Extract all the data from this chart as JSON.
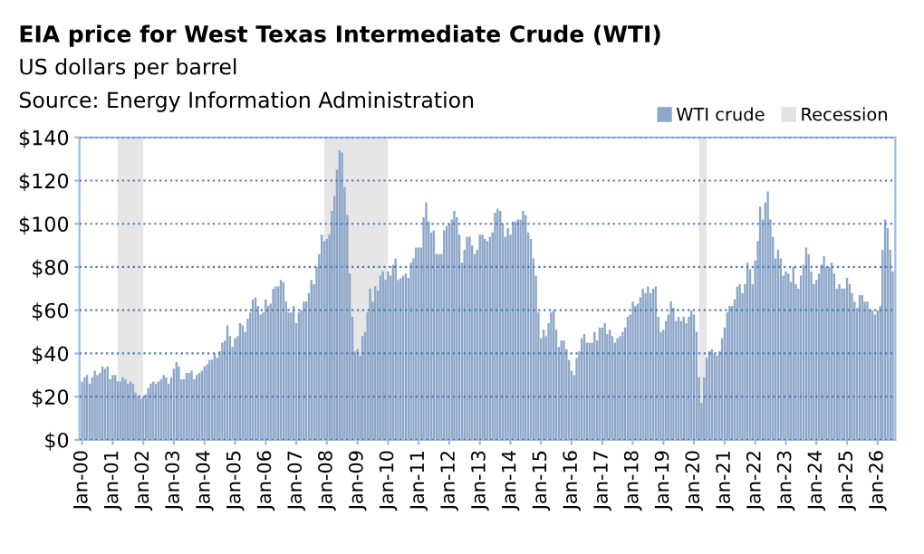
{
  "chart_data": {
    "type": "bar",
    "title": "EIA price for West Texas Intermediate Crude (WTI)",
    "subtitle": "US dollars per barrel",
    "annotations": [
      "Source: Energy Information Administration"
    ],
    "x": [
      "2000-01",
      "2000-02",
      "2000-03",
      "2000-04",
      "2000-05",
      "2000-06",
      "2000-07",
      "2000-08",
      "2000-09",
      "2000-10",
      "2000-11",
      "2000-12",
      "2001-01",
      "2001-02",
      "2001-03",
      "2001-04",
      "2001-05",
      "2001-06",
      "2001-07",
      "2001-08",
      "2001-09",
      "2001-10",
      "2001-11",
      "2001-12",
      "2002-01",
      "2002-02",
      "2002-03",
      "2002-04",
      "2002-05",
      "2002-06",
      "2002-07",
      "2002-08",
      "2002-09",
      "2002-10",
      "2002-11",
      "2002-12",
      "2003-01",
      "2003-02",
      "2003-03",
      "2003-04",
      "2003-05",
      "2003-06",
      "2003-07",
      "2003-08",
      "2003-09",
      "2003-10",
      "2003-11",
      "2003-12",
      "2004-01",
      "2004-02",
      "2004-03",
      "2004-04",
      "2004-05",
      "2004-06",
      "2004-07",
      "2004-08",
      "2004-09",
      "2004-10",
      "2004-11",
      "2004-12",
      "2005-01",
      "2005-02",
      "2005-03",
      "2005-04",
      "2005-05",
      "2005-06",
      "2005-07",
      "2005-08",
      "2005-09",
      "2005-10",
      "2005-11",
      "2005-12",
      "2006-01",
      "2006-02",
      "2006-03",
      "2006-04",
      "2006-05",
      "2006-06",
      "2006-07",
      "2006-08",
      "2006-09",
      "2006-10",
      "2006-11",
      "2006-12",
      "2007-01",
      "2007-02",
      "2007-03",
      "2007-04",
      "2007-05",
      "2007-06",
      "2007-07",
      "2007-08",
      "2007-09",
      "2007-10",
      "2007-11",
      "2007-12",
      "2008-01",
      "2008-02",
      "2008-03",
      "2008-04",
      "2008-05",
      "2008-06",
      "2008-07",
      "2008-08",
      "2008-09",
      "2008-10",
      "2008-11",
      "2008-12",
      "2009-01",
      "2009-02",
      "2009-03",
      "2009-04",
      "2009-05",
      "2009-06",
      "2009-07",
      "2009-08",
      "2009-09",
      "2009-10",
      "2009-11",
      "2009-12",
      "2010-01",
      "2010-02",
      "2010-03",
      "2010-04",
      "2010-05",
      "2010-06",
      "2010-07",
      "2010-08",
      "2010-09",
      "2010-10",
      "2010-11",
      "2010-12",
      "2011-01",
      "2011-02",
      "2011-03",
      "2011-04",
      "2011-05",
      "2011-06",
      "2011-07",
      "2011-08",
      "2011-09",
      "2011-10",
      "2011-11",
      "2011-12",
      "2012-01",
      "2012-02",
      "2012-03",
      "2012-04",
      "2012-05",
      "2012-06",
      "2012-07",
      "2012-08",
      "2012-09",
      "2012-10",
      "2012-11",
      "2012-12",
      "2013-01",
      "2013-02",
      "2013-03",
      "2013-04",
      "2013-05",
      "2013-06",
      "2013-07",
      "2013-08",
      "2013-09",
      "2013-10",
      "2013-11",
      "2013-12",
      "2014-01",
      "2014-02",
      "2014-03",
      "2014-04",
      "2014-05",
      "2014-06",
      "2014-07",
      "2014-08",
      "2014-09",
      "2014-10",
      "2014-11",
      "2014-12",
      "2015-01",
      "2015-02",
      "2015-03",
      "2015-04",
      "2015-05",
      "2015-06",
      "2015-07",
      "2015-08",
      "2015-09",
      "2015-10",
      "2015-11",
      "2015-12",
      "2016-01",
      "2016-02",
      "2016-03",
      "2016-04",
      "2016-05",
      "2016-06",
      "2016-07",
      "2016-08",
      "2016-09",
      "2016-10",
      "2016-11",
      "2016-12",
      "2017-01",
      "2017-02",
      "2017-03",
      "2017-04",
      "2017-05",
      "2017-06",
      "2017-07",
      "2017-08",
      "2017-09",
      "2017-10",
      "2017-11",
      "2017-12",
      "2018-01",
      "2018-02",
      "2018-03",
      "2018-04",
      "2018-05",
      "2018-06",
      "2018-07",
      "2018-08",
      "2018-09",
      "2018-10",
      "2018-11",
      "2018-12",
      "2019-01",
      "2019-02",
      "2019-03",
      "2019-04",
      "2019-05",
      "2019-06",
      "2019-07",
      "2019-08",
      "2019-09",
      "2019-10",
      "2019-11",
      "2019-12",
      "2020-01",
      "2020-02",
      "2020-03",
      "2020-04",
      "2020-05",
      "2020-06",
      "2020-07",
      "2020-08",
      "2020-09",
      "2020-10",
      "2020-11",
      "2020-12",
      "2021-01",
      "2021-02",
      "2021-03",
      "2021-04",
      "2021-05",
      "2021-06",
      "2021-07",
      "2021-08",
      "2021-09",
      "2021-10",
      "2021-11",
      "2021-12",
      "2022-01",
      "2022-02",
      "2022-03",
      "2022-04",
      "2022-05",
      "2022-06",
      "2022-07",
      "2022-08",
      "2022-09",
      "2022-10",
      "2022-11",
      "2022-12",
      "2023-01",
      "2023-02",
      "2023-03",
      "2023-04",
      "2023-05",
      "2023-06",
      "2023-07",
      "2023-08",
      "2023-09",
      "2023-10",
      "2023-11",
      "2023-12",
      "2024-01",
      "2024-02",
      "2024-03",
      "2024-04",
      "2024-05",
      "2024-06",
      "2024-07",
      "2024-08",
      "2024-09",
      "2024-10",
      "2024-11",
      "2024-12",
      "2025-01",
      "2025-02",
      "2025-03",
      "2025-04",
      "2025-05",
      "2025-06",
      "2025-07",
      "2025-08",
      "2025-09",
      "2025-10",
      "2025-11",
      "2025-12",
      "2026-01",
      "2026-02",
      "2026-03",
      "2026-04",
      "2026-05",
      "2026-06",
      "2026-07"
    ],
    "series": [
      {
        "name": "WTI crude",
        "color": "#8ea7c8",
        "values": [
          27,
          29,
          30,
          26,
          29,
          32,
          30,
          31,
          34,
          33,
          34,
          28,
          30,
          30,
          27,
          27,
          29,
          28,
          26,
          27,
          26,
          22,
          20,
          19,
          20,
          21,
          24,
          26,
          27,
          26,
          27,
          28,
          30,
          29,
          26,
          29,
          33,
          36,
          34,
          28,
          28,
          31,
          31,
          32,
          28,
          30,
          31,
          32,
          34,
          35,
          37,
          37,
          40,
          38,
          41,
          45,
          46,
          53,
          48,
          43,
          47,
          48,
          54,
          53,
          50,
          56,
          59,
          65,
          66,
          62,
          58,
          59,
          65,
          62,
          63,
          70,
          71,
          71,
          74,
          73,
          64,
          59,
          59,
          62,
          54,
          59,
          60,
          64,
          64,
          68,
          74,
          72,
          80,
          86,
          95,
          92,
          93,
          95,
          106,
          113,
          125,
          134,
          133,
          117,
          104,
          77,
          57,
          41,
          42,
          39,
          48,
          50,
          59,
          70,
          64,
          71,
          69,
          76,
          78,
          74,
          78,
          76,
          81,
          84,
          74,
          75,
          76,
          77,
          75,
          82,
          84,
          89,
          89,
          89,
          103,
          110,
          101,
          96,
          97,
          86,
          86,
          86,
          97,
          99,
          100,
          102,
          106,
          103,
          95,
          82,
          88,
          94,
          94,
          90,
          86,
          88,
          95,
          95,
          93,
          92,
          94,
          96,
          105,
          107,
          106,
          100,
          94,
          98,
          95,
          101,
          101,
          102,
          102,
          106,
          104,
          96,
          93,
          84,
          76,
          59,
          47,
          51,
          48,
          54,
          59,
          60,
          51,
          43,
          46,
          46,
          42,
          37,
          32,
          30,
          38,
          41,
          47,
          49,
          45,
          45,
          45,
          50,
          46,
          52,
          52,
          54,
          49,
          51,
          48,
          45,
          47,
          48,
          50,
          52,
          57,
          58,
          64,
          62,
          63,
          66,
          70,
          68,
          71,
          68,
          70,
          71,
          57,
          50,
          51,
          55,
          58,
          64,
          61,
          55,
          57,
          55,
          57,
          54,
          57,
          60,
          58,
          50,
          29,
          17,
          29,
          38,
          41,
          42,
          40,
          39,
          41,
          47,
          52,
          59,
          62,
          62,
          65,
          71,
          72,
          68,
          72,
          82,
          79,
          72,
          83,
          92,
          108,
          102,
          110,
          115,
          102,
          94,
          84,
          88,
          84,
          76,
          78,
          77,
          73,
          80,
          72,
          70,
          76,
          81,
          89,
          86,
          78,
          72,
          74,
          77,
          81,
          85,
          80,
          80,
          82,
          77,
          70,
          72,
          70,
          70,
          75,
          72,
          68,
          64,
          61,
          67,
          67,
          64,
          64,
          60,
          60,
          58,
          60,
          62,
          88,
          102,
          98,
          88,
          78
        ]
      }
    ],
    "bands": [
      {
        "axis": "x",
        "from": "2001-03",
        "to": "2001-12",
        "label": "Recession",
        "color": "#e2e2e2"
      },
      {
        "axis": "x",
        "from": "2007-12",
        "to": "2009-12",
        "color": "#e2e2e2"
      },
      {
        "axis": "x",
        "from": "2020-03",
        "to": "2020-05",
        "color": "#e2e2e2"
      }
    ],
    "xlim": [
      "1999-12",
      "2026-08"
    ],
    "xticks": [
      {
        "value": "2000-01",
        "label": "Jan-00"
      },
      {
        "value": "2001-01",
        "label": "Jan-01"
      },
      {
        "value": "2002-01",
        "label": "Jan-02"
      },
      {
        "value": "2003-01",
        "label": "Jan-03"
      },
      {
        "value": "2004-01",
        "label": "Jan-04"
      },
      {
        "value": "2005-01",
        "label": "Jan-05"
      },
      {
        "value": "2006-01",
        "label": "Jan-06"
      },
      {
        "value": "2007-01",
        "label": "Jan-07"
      },
      {
        "value": "2008-01",
        "label": "Jan-08"
      },
      {
        "value": "2009-01",
        "label": "Jan-09"
      },
      {
        "value": "2010-01",
        "label": "Jan-10"
      },
      {
        "value": "2011-01",
        "label": "Jan-11"
      },
      {
        "value": "2012-01",
        "label": "Jan-12"
      },
      {
        "value": "2013-01",
        "label": "Jan-13"
      },
      {
        "value": "2014-01",
        "label": "Jan-14"
      },
      {
        "value": "2015-01",
        "label": "Jan-15"
      },
      {
        "value": "2016-01",
        "label": "Jan-16"
      },
      {
        "value": "2017-01",
        "label": "Jan-17"
      },
      {
        "value": "2018-01",
        "label": "Jan-18"
      },
      {
        "value": "2019-01",
        "label": "Jan-19"
      },
      {
        "value": "2020-01",
        "label": "Jan-20"
      },
      {
        "value": "2021-01",
        "label": "Jan-21"
      },
      {
        "value": "2022-01",
        "label": "Jan-22"
      },
      {
        "value": "2023-01",
        "label": "Jan-23"
      },
      {
        "value": "2024-01",
        "label": "Jan-24"
      },
      {
        "value": "2025-01",
        "label": "Jan-25"
      },
      {
        "value": "2026-01",
        "label": "Jan-26"
      }
    ],
    "ylim": [
      0,
      140
    ],
    "yticks": [
      {
        "value": 0,
        "label": "$0"
      },
      {
        "value": 20,
        "label": "$20"
      },
      {
        "value": 40,
        "label": "$40"
      },
      {
        "value": 60,
        "label": "$60"
      },
      {
        "value": 80,
        "label": "$80"
      },
      {
        "value": 100,
        "label": "$100"
      },
      {
        "value": 120,
        "label": "$120"
      },
      {
        "value": 140,
        "label": "$140"
      }
    ],
    "grid": "y",
    "legend": "top right"
  }
}
